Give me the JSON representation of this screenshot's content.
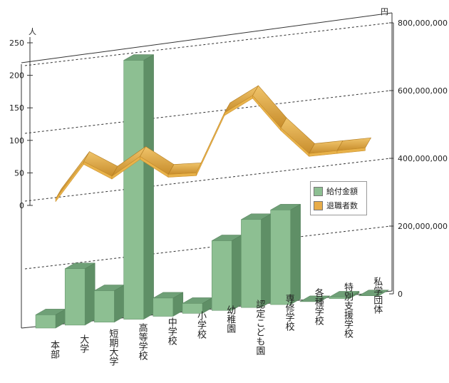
{
  "chart_data": {
    "type": "bar-line-3d",
    "categories": [
      "本部",
      "大学",
      "短期大学",
      "高等学校",
      "中学校",
      "小学校",
      "幼稚園",
      "認定こども園",
      "専修学校",
      "各種学校",
      "特別支援学校",
      "私学団体"
    ],
    "left_axis": {
      "unit": "人",
      "ticks": [
        "250",
        "200",
        "150",
        "100",
        "50",
        "0"
      ],
      "range": [
        0,
        250
      ]
    },
    "right_axis": {
      "unit": "円",
      "ticks": [
        "800,000,000",
        "600,000,000",
        "400,000,000",
        "200,000,000",
        "0"
      ],
      "range": [
        0,
        800000000
      ]
    },
    "series": [
      {
        "name": "給付金額",
        "axis": "right",
        "type": "bar",
        "color": "#8dbf92",
        "values": [
          40000000,
          170000000,
          95000000,
          780000000,
          55000000,
          30000000,
          210000000,
          265000000,
          285000000,
          0,
          5000000,
          0
        ]
      },
      {
        "name": "退職者数",
        "axis": "left",
        "type": "line",
        "color": "#e0a84a",
        "values": [
          10,
          65,
          40,
          68,
          38,
          38,
          128,
          152,
          100,
          58,
          60,
          62
        ]
      }
    ],
    "legend_position": "right"
  },
  "legend": {
    "bar_label": "給付金額",
    "line_label": "退職者数"
  }
}
